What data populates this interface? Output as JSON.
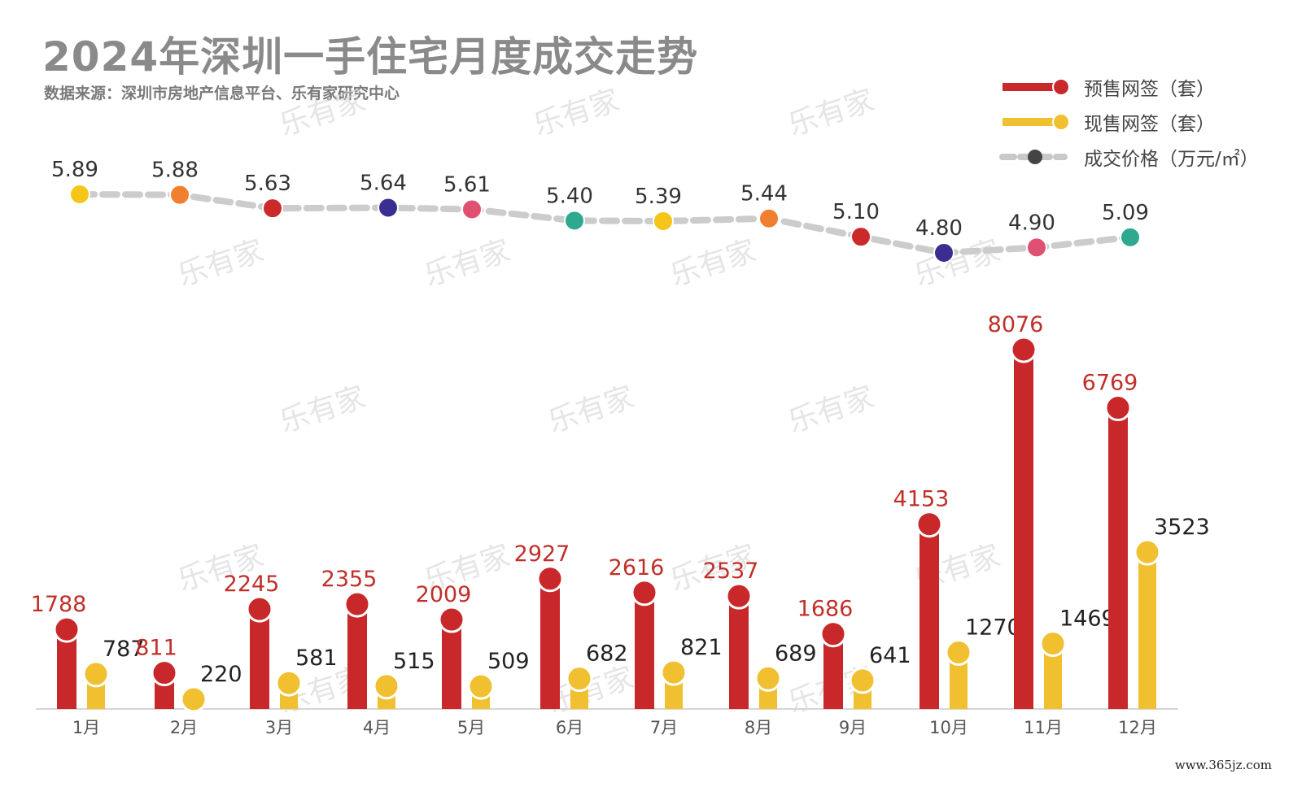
{
  "title": "2024年深圳一手住宅月度成交走势",
  "source": "数据来源：深圳市房地产信息平台、乐有家研究中心",
  "watermark": "乐有家",
  "site_mark": "www.365jz.com",
  "legend": [
    {
      "label": "预售网签（套）",
      "color": "#c8282a"
    },
    {
      "label": "现售网签（套）",
      "color": "#f0c030"
    },
    {
      "label": "成交价格（万元/㎡）",
      "color": "#444444"
    }
  ],
  "chart_data": {
    "type": "bar",
    "categories": [
      "1月",
      "2月",
      "3月",
      "4月",
      "5月",
      "6月",
      "7月",
      "8月",
      "9月",
      "10月",
      "11月",
      "12月"
    ],
    "series": [
      {
        "name": "预售网签（套）",
        "type": "bar",
        "color": "#c8282a",
        "label_color": "#c0302a",
        "values": [
          1788,
          811,
          2245,
          2355,
          2009,
          2927,
          2616,
          2537,
          1686,
          4153,
          8076,
          6769
        ]
      },
      {
        "name": "现售网签（套）",
        "type": "bar",
        "color": "#f0c030",
        "label_color": "#222222",
        "values": [
          787,
          220,
          581,
          515,
          509,
          682,
          821,
          689,
          641,
          1270,
          1469,
          3523
        ]
      },
      {
        "name": "成交价格（万元/㎡）",
        "type": "line",
        "color": "#cccccc",
        "label_color": "#333333",
        "values": [
          "5.89",
          "5.88",
          "5.63",
          "5.64",
          "5.61",
          "5.40",
          "5.39",
          "5.44",
          "5.10",
          "4.80",
          "4.90",
          "5.09"
        ],
        "marker_colors": [
          "#f5c518",
          "#f08030",
          "#cc2a2a",
          "#3a2e90",
          "#e05070",
          "#2fa890",
          "#f5c518",
          "#f08030",
          "#cc2a2a",
          "#3a2e90",
          "#e05070",
          "#2fa890"
        ]
      }
    ],
    "xlabel": "",
    "ylabel": "",
    "grid": false,
    "legend_position": "top-right"
  }
}
